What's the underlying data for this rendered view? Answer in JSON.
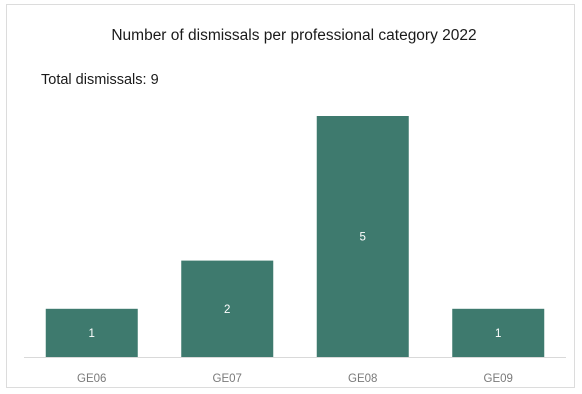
{
  "chart_data": {
    "type": "bar",
    "title": "Number of dismissals per professional category 2022",
    "subtitle": "Total dismissals: 9",
    "categories": [
      "GE06",
      "GE07",
      "GE08",
      "GE09"
    ],
    "values": [
      1,
      2,
      5,
      1
    ],
    "data_labels": [
      "1",
      "2",
      "5",
      "1"
    ],
    "xlabel": "",
    "ylabel": "",
    "ylim": [
      0,
      5
    ],
    "grid": false,
    "legend": "none",
    "bar_color": "#3e7a6e",
    "axis_color": "#d9d9d9"
  }
}
